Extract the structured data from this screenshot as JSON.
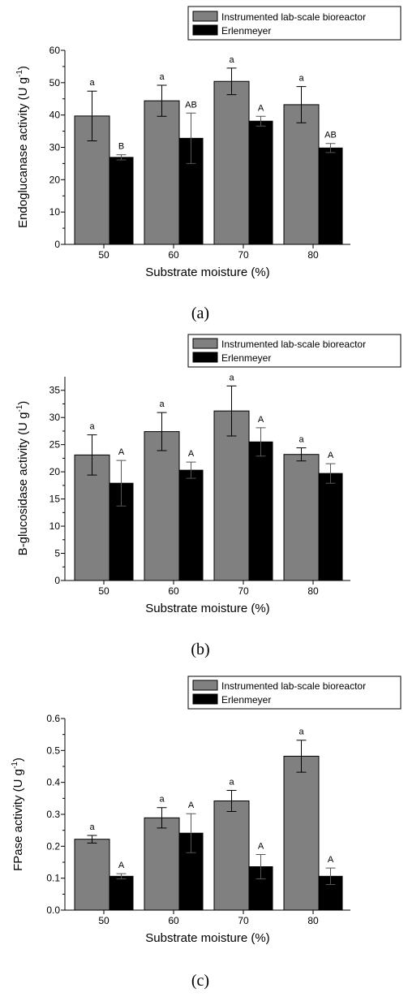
{
  "legend": [
    "Instrumented lab-scale bioreactor",
    "Erlenmeyer"
  ],
  "colors": {
    "bioreactor": "#808080",
    "erlenmeyer": "#000000"
  },
  "chart_data": [
    {
      "type": "bar",
      "caption": "(a)",
      "xlabel": "Substrate moisture (%)",
      "ylabel_main": "Endoglucanase activity (U g",
      "ylabel_sup": "-1",
      "ylabel_close": ")",
      "categories": [
        "50",
        "60",
        "70",
        "80"
      ],
      "ylim": [
        0,
        60
      ],
      "yticks": [
        0,
        10,
        20,
        30,
        40,
        50,
        60
      ],
      "ytick_labels": [
        "0",
        "10",
        "20",
        "30",
        "40",
        "50",
        "60"
      ],
      "series": [
        {
          "name": "Instrumented lab-scale bioreactor",
          "values": [
            39.7,
            44.4,
            50.4,
            43.2
          ],
          "errors": [
            7.7,
            4.8,
            4.1,
            5.6
          ],
          "letters": [
            "a",
            "a",
            "a",
            "a"
          ]
        },
        {
          "name": "Erlenmeyer",
          "values": [
            26.9,
            32.8,
            38.1,
            29.8
          ],
          "errors": [
            0.8,
            7.8,
            1.5,
            1.4
          ],
          "letters": [
            "B",
            "AB",
            "A",
            "AB"
          ]
        }
      ]
    },
    {
      "type": "bar",
      "caption": "(b)",
      "xlabel": "Substrate moisture (%)",
      "ylabel_main": "B-glucosidase activity (U g",
      "ylabel_sup": "-1",
      "ylabel_close": ")",
      "categories": [
        "50",
        "60",
        "70",
        "80"
      ],
      "ylim": [
        0,
        37.5
      ],
      "yticks": [
        0,
        5,
        10,
        15,
        20,
        25,
        30,
        35
      ],
      "ytick_labels": [
        "0",
        "5",
        "10",
        "15",
        "20",
        "25",
        "30",
        "35"
      ],
      "series": [
        {
          "name": "Instrumented lab-scale bioreactor",
          "values": [
            23.1,
            27.4,
            31.2,
            23.2
          ],
          "errors": [
            3.7,
            3.5,
            4.6,
            1.2
          ],
          "letters": [
            "a",
            "a",
            "a",
            "a"
          ]
        },
        {
          "name": "Erlenmeyer",
          "values": [
            17.9,
            20.3,
            25.5,
            19.7
          ],
          "errors": [
            4.2,
            1.5,
            2.6,
            1.8
          ],
          "letters": [
            "A",
            "A",
            "A",
            "A"
          ]
        }
      ]
    },
    {
      "type": "bar",
      "caption": "(c)",
      "xlabel": "Substrate moisture (%)",
      "ylabel_main": "FPase activity (U g",
      "ylabel_sup": "-1",
      "ylabel_close": ")",
      "categories": [
        "50",
        "60",
        "70",
        "80"
      ],
      "ylim": [
        0,
        0.6
      ],
      "yticks": [
        0,
        0.1,
        0.2,
        0.3,
        0.4,
        0.5,
        0.6
      ],
      "ytick_labels": [
        "0.0",
        "0.1",
        "0.2",
        "0.3",
        "0.4",
        "0.5",
        "0.6"
      ],
      "series": [
        {
          "name": "Instrumented lab-scale bioreactor",
          "values": [
            0.222,
            0.289,
            0.342,
            0.482
          ],
          "errors": [
            0.012,
            0.032,
            0.033,
            0.05
          ],
          "letters": [
            "a",
            "a",
            "a",
            "a"
          ]
        },
        {
          "name": "Erlenmeyer",
          "values": [
            0.106,
            0.241,
            0.136,
            0.106
          ],
          "errors": [
            0.008,
            0.061,
            0.038,
            0.026
          ],
          "letters": [
            "A",
            "A",
            "A",
            "A"
          ]
        }
      ]
    }
  ]
}
